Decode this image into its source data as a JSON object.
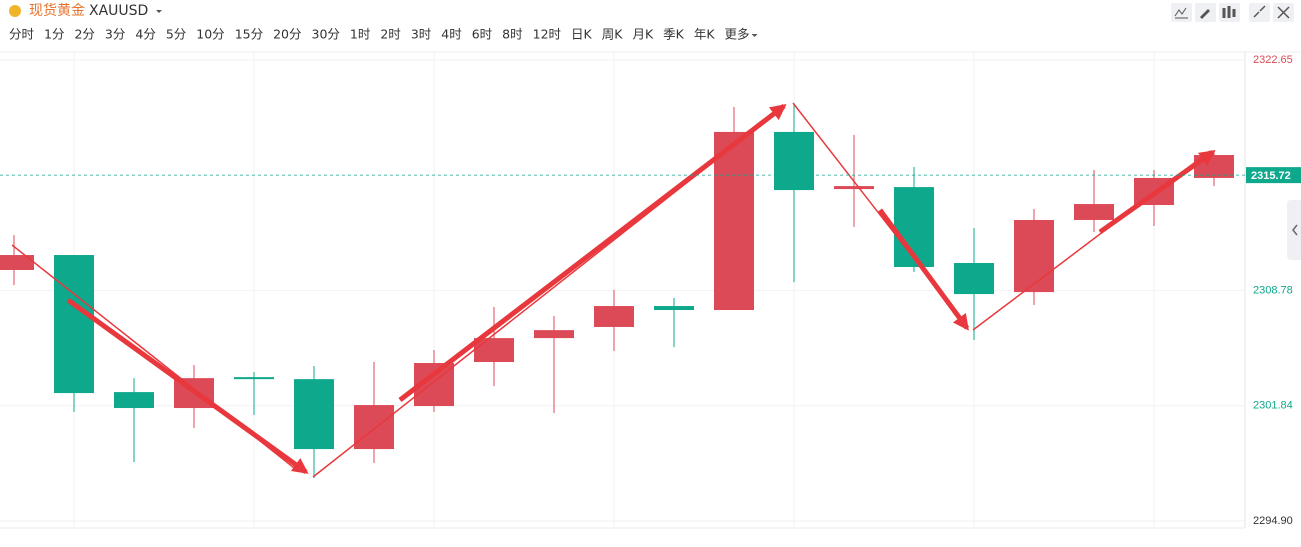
{
  "header": {
    "name": "现货黄金",
    "code": "XAUUSD"
  },
  "periods": [
    "分时",
    "1分",
    "2分",
    "3分",
    "4分",
    "5分",
    "10分",
    "15分",
    "20分",
    "30分",
    "1时",
    "2时",
    "3时",
    "4时",
    "6时",
    "8时",
    "12时",
    "日K",
    "周K",
    "月K",
    "季K",
    "年K"
  ],
  "active_period": 10,
  "more": "更多",
  "chart_data": {
    "type": "candlestick",
    "up_color": "#dc4a57",
    "down_color": "#0ea88c",
    "categories": [
      null,
      null,
      null,
      null,
      null,
      null,
      null,
      null,
      null,
      null,
      null,
      null,
      null,
      null,
      null,
      null,
      null,
      null,
      null,
      null,
      null
    ],
    "open": [
      2310.01,
      2310.91,
      2302.66,
      2301.7,
      2303.56,
      2303.44,
      2299.23,
      2301.82,
      2304.47,
      2305.91,
      2306.58,
      2307.84,
      2307.6,
      2318.32,
      2314.88,
      2315.0,
      2310.43,
      2308.68,
      2313.02,
      2313.92,
      2315.55
    ],
    "high": [
      2312.11,
      2310.91,
      2303.5,
      2304.29,
      2303.87,
      2304.23,
      2304.47,
      2305.19,
      2307.78,
      2307.24,
      2308.8,
      2308.32,
      2319.82,
      2320.06,
      2318.14,
      2316.21,
      2312.54,
      2313.68,
      2316.03,
      2316.03,
      2317.23
    ],
    "low": [
      2309.1,
      2301.46,
      2298.45,
      2300.49,
      2301.28,
      2297.48,
      2298.39,
      2301.46,
      2303.02,
      2301.4,
      2305.13,
      2305.37,
      2307.6,
      2309.28,
      2312.6,
      2309.89,
      2305.79,
      2307.9,
      2312.3,
      2312.66,
      2315.06
    ],
    "close": [
      2310.91,
      2302.6,
      2301.7,
      2303.5,
      2303.44,
      2299.23,
      2301.88,
      2304.41,
      2305.91,
      2306.39,
      2307.84,
      2307.6,
      2318.32,
      2314.82,
      2315.06,
      2310.19,
      2308.56,
      2313.02,
      2313.98,
      2315.55,
      2316.93
    ],
    "ylim": [
      2294.9,
      2322.65
    ],
    "yticks": [
      {
        "value": 2294.9,
        "label": "2294.90"
      },
      2301.84,
      2308.78,
      2322.65
    ],
    "current_price": 2315.72,
    "grid": true
  }
}
